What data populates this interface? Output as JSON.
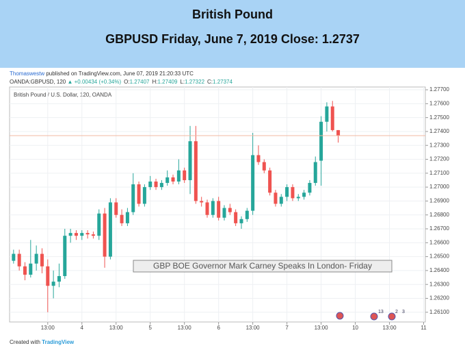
{
  "chart_data": {
    "type": "candlestick",
    "title": "British Pound",
    "subtitle": "GBPUSD Friday, June 7, 2019 Close: 1.2737",
    "publisher_name": "Thomaswestw",
    "publisher_text": "published on TradingView.com, June 07, 2019 21:20:33 UTC",
    "symbol": "OANDA:GBPUSD, 120",
    "change": "▲ +0.00434 (+0.34%)",
    "quote": [
      {
        "label": "O:",
        "value": "1.27407"
      },
      {
        "label": "H:",
        "value": "1.27409"
      },
      {
        "label": "L:",
        "value": "1.27322"
      },
      {
        "label": "C:",
        "value": "1.27374"
      }
    ],
    "pane_label": "British Pound / U.S. Dollar, 120, OANDA",
    "annotation": "GBP BOE Governor Mark Carney Speaks In London- Friday",
    "event_badges": [
      "13",
      "2",
      "3"
    ],
    "footer_prefix": "Created with",
    "footer_brand": "TradingView",
    "up_color": "#26a69a",
    "down_color": "#ef5350",
    "open": [
      1.2647,
      1.2652,
      1.2643,
      1.2637,
      1.2645,
      1.2652,
      1.2643,
      1.2629,
      1.2632,
      1.2636,
      1.2665,
      1.2667,
      1.2665,
      1.2667,
      1.2666,
      1.2665,
      1.2681,
      1.265,
      1.2689,
      1.268,
      1.2674,
      1.2682,
      1.2702,
      1.2688,
      1.27,
      1.2704,
      1.27,
      1.2703,
      1.2707,
      1.2704,
      1.2712,
      1.2705,
      1.2733,
      1.269,
      1.2689,
      1.268,
      1.269,
      1.2678,
      1.2685,
      1.2682,
      1.2674,
      1.2677,
      1.2683,
      1.2723,
      1.2718,
      1.2712,
      1.2696,
      1.2688,
      1.2693,
      1.27,
      1.2692,
      1.2693,
      1.2696,
      1.2703,
      1.2719,
      1.2747,
      1.2758,
      1.2741
    ],
    "high": [
      1.2655,
      1.2655,
      1.2646,
      1.2662,
      1.2658,
      1.2656,
      1.2648,
      1.264,
      1.2645,
      1.267,
      1.267,
      1.2669,
      1.2669,
      1.2669,
      1.2668,
      1.2684,
      1.2685,
      1.2692,
      1.2692,
      1.2684,
      1.2685,
      1.271,
      1.2704,
      1.2702,
      1.2708,
      1.2706,
      1.2705,
      1.2712,
      1.2709,
      1.272,
      1.2714,
      1.2744,
      1.2744,
      1.2693,
      1.2691,
      1.2692,
      1.2693,
      1.2687,
      1.2688,
      1.2684,
      1.2679,
      1.2685,
      1.2739,
      1.273,
      1.272,
      1.2714,
      1.2698,
      1.2695,
      1.2702,
      1.2702,
      1.2695,
      1.2698,
      1.2705,
      1.2722,
      1.2751,
      1.2761,
      1.2762,
      1.2741
    ],
    "low": [
      1.2645,
      1.264,
      1.2633,
      1.2635,
      1.264,
      1.2638,
      1.261,
      1.262,
      1.2628,
      1.2634,
      1.266,
      1.2662,
      1.2662,
      1.2663,
      1.2663,
      1.2662,
      1.2642,
      1.2648,
      1.2678,
      1.2672,
      1.2672,
      1.268,
      1.2686,
      1.2686,
      1.2698,
      1.2698,
      1.2698,
      1.2701,
      1.2702,
      1.2702,
      1.2703,
      1.2695,
      1.2688,
      1.2686,
      1.2678,
      1.2678,
      1.2676,
      1.2676,
      1.268,
      1.2672,
      1.267,
      1.2675,
      1.268,
      1.2716,
      1.271,
      1.2694,
      1.2686,
      1.2686,
      1.269,
      1.269,
      1.269,
      1.2691,
      1.2694,
      1.2701,
      1.2701,
      1.274,
      1.274,
      1.2732
    ],
    "close": [
      1.2652,
      1.2643,
      1.2637,
      1.2645,
      1.2652,
      1.2643,
      1.2629,
      1.2632,
      1.2636,
      1.2665,
      1.2667,
      1.2665,
      1.2667,
      1.2666,
      1.2665,
      1.2681,
      1.265,
      1.2689,
      1.268,
      1.2674,
      1.2682,
      1.2702,
      1.2688,
      1.27,
      1.2704,
      1.27,
      1.2703,
      1.2707,
      1.2704,
      1.2712,
      1.2705,
      1.2733,
      1.269,
      1.2689,
      1.268,
      1.269,
      1.2678,
      1.2685,
      1.2682,
      1.2674,
      1.2677,
      1.2683,
      1.2723,
      1.2718,
      1.2712,
      1.2696,
      1.2688,
      1.2693,
      1.27,
      1.2692,
      1.2693,
      1.2696,
      1.2703,
      1.2718,
      1.2747,
      1.2758,
      1.2741,
      1.2737
    ],
    "xlim": [
      -0.7,
      72.3
    ],
    "xticks": [
      {
        "value": 6,
        "label": "13:00"
      },
      {
        "value": 12,
        "label": "4"
      },
      {
        "value": 18,
        "label": "13:00"
      },
      {
        "value": 24,
        "label": "5"
      },
      {
        "value": 30,
        "label": "13:00"
      },
      {
        "value": 36,
        "label": "6"
      },
      {
        "value": 42,
        "label": "13:00"
      },
      {
        "value": 48,
        "label": "7"
      },
      {
        "value": 54,
        "label": "13:00"
      },
      {
        "value": 60,
        "label": "10"
      },
      {
        "value": 66,
        "label": "13:00"
      },
      {
        "value": 72,
        "label": "11"
      }
    ],
    "ylim": [
      1.2603,
      1.2772
    ],
    "yticks": [
      {
        "value": 1.277,
        "label": "1.27700"
      },
      {
        "value": 1.276,
        "label": "1.27600"
      },
      {
        "value": 1.275,
        "label": "1.27500"
      },
      {
        "value": 1.274,
        "label": "1.27400"
      },
      {
        "value": 1.273,
        "label": "1.27300"
      },
      {
        "value": 1.272,
        "label": "1.27200"
      },
      {
        "value": 1.271,
        "label": "1.27100"
      },
      {
        "value": 1.27,
        "label": "1.27000"
      },
      {
        "value": 1.269,
        "label": "1.26900"
      },
      {
        "value": 1.268,
        "label": "1.26800"
      },
      {
        "value": 1.267,
        "label": "1.26700"
      },
      {
        "value": 1.266,
        "label": "1.26600"
      },
      {
        "value": 1.265,
        "label": "1.26500"
      },
      {
        "value": 1.264,
        "label": "1.26400"
      },
      {
        "value": 1.263,
        "label": "1.26300"
      },
      {
        "value": 1.262,
        "label": "1.26200"
      },
      {
        "value": 1.261,
        "label": "1.26100"
      }
    ],
    "grid": true
  }
}
